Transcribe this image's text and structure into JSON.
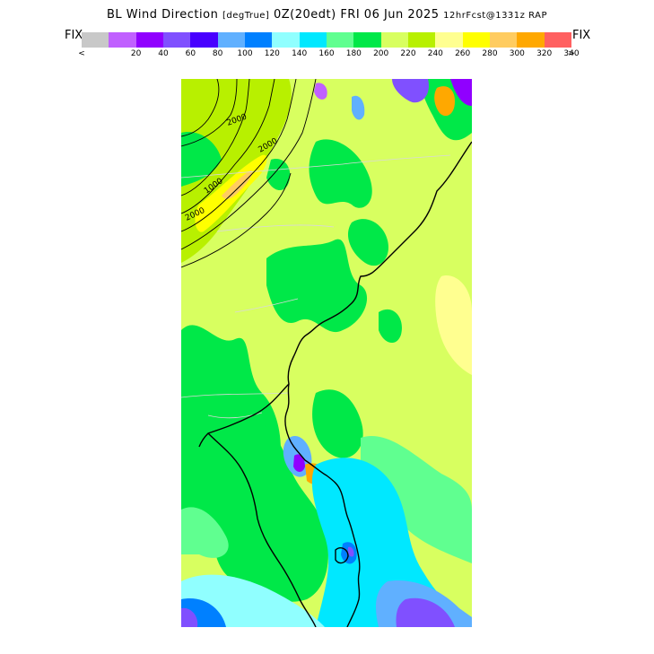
{
  "header": {
    "title_main": "BL Wind Direction",
    "units": "[degTrue]",
    "valid": "0Z(20edt) FRI 06 Jun 2025",
    "forecast": "12hrFcst@1331z RAP"
  },
  "colorbar": {
    "fix_left": "FIX",
    "fix_right": "FIX",
    "lt": "<",
    "gt": ">",
    "labels": [
      "20",
      "40",
      "60",
      "80",
      "100",
      "120",
      "140",
      "160",
      "180",
      "200",
      "220",
      "240",
      "260",
      "280",
      "300",
      "320",
      "340"
    ],
    "colors": [
      "#c8c8c8",
      "#c060ff",
      "#9000ff",
      "#8050ff",
      "#4800ff",
      "#60b0ff",
      "#0080ff",
      "#90ffff",
      "#00e8ff",
      "#60ff90",
      "#00e848",
      "#d8ff60",
      "#b8f000",
      "#ffff90",
      "#ffff00",
      "#ffcc60",
      "#ffa800",
      "#ff6060"
    ]
  },
  "map": {
    "contour_labels": [
      "2000",
      "2000",
      "1000",
      "2000"
    ],
    "colors": {
      "lightgreen": "#d8ff60",
      "green": "#00e848",
      "midgreen": "#60ff90",
      "yellowgreen": "#b8f000",
      "paleyellow": "#ffff90",
      "cyan": "#00e8ff",
      "lightcyan": "#90ffff",
      "lightblue": "#60b0ff",
      "blue": "#0080ff",
      "violet": "#8050ff",
      "purple": "#9000ff",
      "orange": "#ffa800",
      "red": "#ff6060",
      "yellow": "#ffff00",
      "lavender": "#c060ff"
    }
  }
}
